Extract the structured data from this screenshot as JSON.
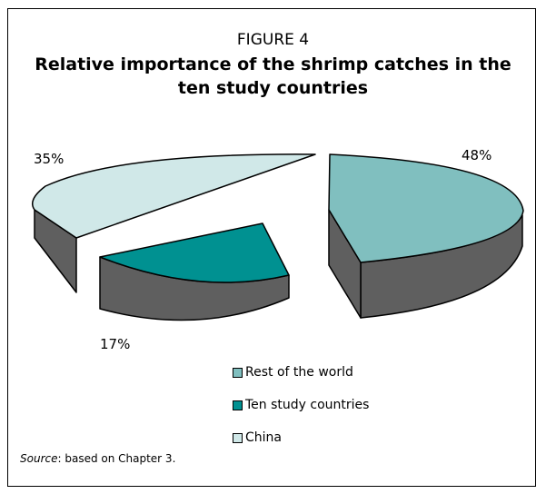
{
  "figure": {
    "label": "FIGURE 4",
    "title": "Relative importance of the shrimp catches in the ten study countries"
  },
  "source": {
    "prefix": "Source",
    "text": ": based on Chapter 3."
  },
  "colors": {
    "side": "#5f5f5f",
    "outline": "#000000"
  },
  "chart_data": {
    "type": "pie",
    "title": "Relative importance of the shrimp catches in the ten study countries",
    "style": "3d-exploded",
    "legend_position": "bottom",
    "slices": [
      {
        "name": "Rest of the world",
        "value": 48,
        "label": "48%",
        "color": "#80bfbf"
      },
      {
        "name": "Ten study countries",
        "value": 17,
        "label": "17%",
        "color": "#009191"
      },
      {
        "name": "China",
        "value": 35,
        "label": "35%",
        "color": "#d0e8e8"
      }
    ]
  }
}
